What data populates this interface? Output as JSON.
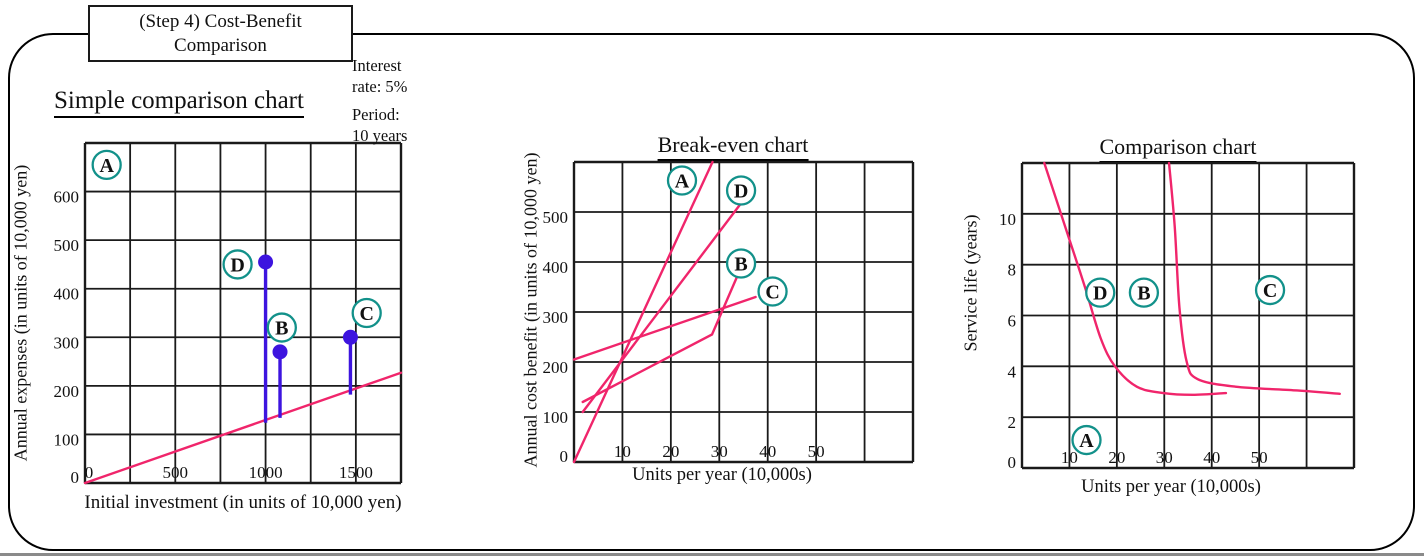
{
  "frame": {
    "step_box_line1": "(Step 4) Cost-Benefit",
    "step_box_line2": "Comparison",
    "note1_line1": "Interest",
    "note1_line2": "rate: 5%",
    "note2_line1": "Period:",
    "note2_line2": "10 years"
  },
  "colors": {
    "line_pink": "#F0256B",
    "stem_blue": "#3D14DF",
    "circle_teal": "#12918A",
    "grid_black": "#1A1A1A"
  },
  "chart_data": [
    {
      "type": "line",
      "title": "Simple comparison chart",
      "xlabel": "Initial investment (in units of 10,000 yen)",
      "ylabel": "Annual expenses (in units of 10,000 yen)",
      "x_range": [
        0,
        1750
      ],
      "x_grid_step": 250,
      "y_range": [
        0,
        700
      ],
      "y_grid_step": 100,
      "grid": true,
      "x_ticks": [
        {
          "v": 0,
          "label": "0"
        },
        {
          "v": 500,
          "label": "500"
        },
        {
          "v": 1000,
          "label": "1000"
        },
        {
          "v": 1500,
          "label": "1500"
        }
      ],
      "y_ticks": [
        {
          "v": 0,
          "label": "0"
        },
        {
          "v": 100,
          "label": "100"
        },
        {
          "v": 200,
          "label": "200"
        },
        {
          "v": 300,
          "label": "300"
        },
        {
          "v": 400,
          "label": "400"
        },
        {
          "v": 500,
          "label": "500"
        },
        {
          "v": 600,
          "label": "600"
        }
      ],
      "series": [
        {
          "name": "annual-cost-of-investment-line",
          "type": "line",
          "color": "#F0256B",
          "points": [
            [
              0,
              0
            ],
            [
              1750,
              227
            ]
          ]
        },
        {
          "name": "option-D-stem",
          "type": "lollipop",
          "color": "#3D14DF",
          "x": 1000,
          "y": 455,
          "base": 124
        },
        {
          "name": "option-B-stem",
          "type": "lollipop",
          "color": "#3D14DF",
          "x": 1080,
          "y": 270,
          "base": 134
        },
        {
          "name": "option-C-stem",
          "type": "lollipop",
          "color": "#3D14DF",
          "x": 1470,
          "y": 300,
          "base": 182
        }
      ],
      "point_labels": [
        {
          "letter": "A",
          "x": 120,
          "y": 655
        },
        {
          "letter": "D",
          "x": 845,
          "y": 450
        },
        {
          "letter": "B",
          "x": 1090,
          "y": 320
        },
        {
          "letter": "C",
          "x": 1560,
          "y": 350
        }
      ]
    },
    {
      "type": "line",
      "title": "Break-even chart",
      "xlabel": "Units per year (10,000s)",
      "ylabel": "Annual cost benefit (in units of 10,000 yen)",
      "x_range": [
        0,
        70
      ],
      "x_grid_step": 10,
      "y_range": [
        0,
        600
      ],
      "y_grid_step": 100,
      "grid": true,
      "x_ticks": [
        {
          "v": 10,
          "label": "10"
        },
        {
          "v": 20,
          "label": "20"
        },
        {
          "v": 30,
          "label": "30"
        },
        {
          "v": 40,
          "label": "40"
        },
        {
          "v": 50,
          "label": "50"
        }
      ],
      "y_ticks": [
        {
          "v": 0,
          "label": "0"
        },
        {
          "v": 100,
          "label": "100"
        },
        {
          "v": 200,
          "label": "200"
        },
        {
          "v": 300,
          "label": "300"
        },
        {
          "v": 400,
          "label": "400"
        },
        {
          "v": 500,
          "label": "500"
        }
      ],
      "series": [
        {
          "name": "plan-A-line",
          "type": "line",
          "color": "#F0256B",
          "points": [
            [
              0,
              0
            ],
            [
              28.6,
              600
            ]
          ]
        },
        {
          "name": "plan-D-line",
          "type": "line",
          "color": "#F0256B",
          "points": [
            [
              1.8,
              100
            ],
            [
              34.3,
              515
            ]
          ]
        },
        {
          "name": "plan-B-line",
          "type": "line",
          "color": "#F0256B",
          "points": [
            [
              1.8,
              120
            ],
            [
              28.5,
              255
            ],
            [
              34,
              378
            ]
          ]
        },
        {
          "name": "plan-C-line",
          "type": "line",
          "color": "#F0256B",
          "points": [
            [
              0,
              205
            ],
            [
              37.5,
              330
            ]
          ]
        }
      ],
      "point_labels": [
        {
          "letter": "A",
          "x": 22.3,
          "y": 563
        },
        {
          "letter": "D",
          "x": 34.5,
          "y": 543
        },
        {
          "letter": "B",
          "x": 34.5,
          "y": 397
        },
        {
          "letter": "C",
          "x": 41,
          "y": 341
        }
      ]
    },
    {
      "type": "line",
      "title": "Comparison chart",
      "xlabel": "Units per year (10,000s)",
      "ylabel": "Service life (years)",
      "x_range": [
        0,
        70
      ],
      "x_grid_step": 10,
      "y_range": [
        0,
        12
      ],
      "y_grid_step": 2,
      "grid": true,
      "x_ticks": [
        {
          "v": 10,
          "label": "10"
        },
        {
          "v": 20,
          "label": "20"
        },
        {
          "v": 30,
          "label": "30"
        },
        {
          "v": 40,
          "label": "40"
        },
        {
          "v": 50,
          "label": "50"
        }
      ],
      "y_ticks": [
        {
          "v": 0,
          "label": "0"
        },
        {
          "v": 2,
          "label": "2"
        },
        {
          "v": 4,
          "label": "4"
        },
        {
          "v": 6,
          "label": "6"
        },
        {
          "v": 8,
          "label": "8"
        },
        {
          "v": 10,
          "label": "10"
        }
      ],
      "series": [
        {
          "name": "service-life-curve-1",
          "type": "curve",
          "color": "#F0256B",
          "points": [
            [
              4.7,
              12
            ],
            [
              9.8,
              9.1
            ],
            [
              13.3,
              7.1
            ],
            [
              16.6,
              5.1
            ],
            [
              19.6,
              4.0
            ],
            [
              24.2,
              3.2
            ],
            [
              29.8,
              2.95
            ],
            [
              36,
              2.88
            ],
            [
              43,
              2.95
            ]
          ]
        },
        {
          "name": "service-life-curve-2",
          "type": "curve",
          "color": "#F0256B",
          "points": [
            [
              31,
              12
            ],
            [
              32.2,
              9.5
            ],
            [
              33.2,
              6.3
            ],
            [
              34.7,
              4.2
            ],
            [
              37,
              3.5
            ],
            [
              45,
              3.2
            ],
            [
              58,
              3.05
            ],
            [
              67,
              2.92
            ]
          ]
        }
      ],
      "point_labels": [
        {
          "letter": "D",
          "x": 16.5,
          "y": 6.9
        },
        {
          "letter": "B",
          "x": 25.7,
          "y": 6.9
        },
        {
          "letter": "C",
          "x": 52.3,
          "y": 7.0
        },
        {
          "letter": "A",
          "x": 13.6,
          "y": 1.1
        }
      ]
    }
  ]
}
